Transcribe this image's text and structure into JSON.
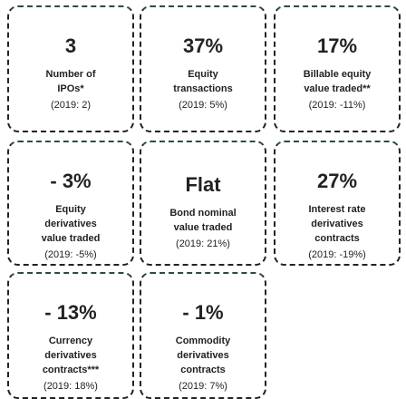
{
  "cards": [
    {
      "value": "3",
      "label_lines": [
        "Number of",
        "IPOs*"
      ],
      "comparison": "(2019: 2)"
    },
    {
      "value": "37%",
      "label_lines": [
        "Equity",
        "transactions"
      ],
      "comparison": "(2019: 5%)"
    },
    {
      "value": "17%",
      "label_lines": [
        "Billable equity",
        "value traded**"
      ],
      "comparison": "(2019: -11%)"
    },
    {
      "value": "- 3%",
      "label_lines": [
        "Equity",
        "derivatives",
        "value traded"
      ],
      "comparison": "(2019: -5%)"
    },
    {
      "value": "Flat",
      "label_lines": [
        "Bond nominal",
        "value traded"
      ],
      "comparison": "(2019: 21%)"
    },
    {
      "value": "27%",
      "label_lines": [
        "Interest rate",
        "derivatives",
        "contracts"
      ],
      "comparison": "(2019: -19%)"
    },
    {
      "value": "- 13%",
      "label_lines": [
        "Currency",
        "derivatives",
        "contracts***"
      ],
      "comparison": "(2019: 18%)"
    },
    {
      "value": "- 1%",
      "label_lines": [
        "Commodity",
        "derivatives",
        "contracts"
      ],
      "comparison": "(2019: 7%)"
    }
  ]
}
